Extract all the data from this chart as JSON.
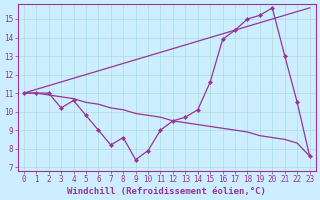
{
  "xlabel": "Windchill (Refroidissement éolien,°C)",
  "background_color": "#cceeff",
  "line_color": "#993399",
  "xlim": [
    -0.5,
    23.5
  ],
  "ylim": [
    6.8,
    15.8
  ],
  "yticks": [
    7,
    8,
    9,
    10,
    11,
    12,
    13,
    14,
    15
  ],
  "xticks": [
    0,
    1,
    2,
    3,
    4,
    5,
    6,
    7,
    8,
    9,
    10,
    11,
    12,
    13,
    14,
    15,
    16,
    17,
    18,
    19,
    20,
    21,
    22,
    23
  ],
  "series1_x": [
    0,
    1,
    2,
    3,
    4,
    5,
    6,
    7,
    8,
    9,
    10,
    11,
    12,
    13,
    14,
    15,
    16,
    17,
    18,
    19,
    20,
    21,
    22,
    23
  ],
  "series1_y": [
    11.0,
    11.0,
    11.0,
    10.2,
    10.6,
    9.8,
    9.0,
    8.2,
    8.6,
    7.4,
    7.9,
    9.0,
    9.5,
    9.7,
    10.1,
    11.6,
    13.9,
    14.4,
    15.0,
    15.2,
    15.6,
    13.0,
    10.5,
    7.6
  ],
  "series2_x": [
    0,
    23
  ],
  "series2_y": [
    11.0,
    15.6
  ],
  "series3_x": [
    0,
    1,
    2,
    3,
    4,
    5,
    6,
    7,
    8,
    9,
    10,
    11,
    12,
    13,
    14,
    15,
    16,
    17,
    18,
    19,
    20,
    21,
    22,
    23
  ],
  "series3_y": [
    11.0,
    11.0,
    10.9,
    10.8,
    10.7,
    10.5,
    10.4,
    10.2,
    10.1,
    9.9,
    9.8,
    9.7,
    9.5,
    9.4,
    9.3,
    9.2,
    9.1,
    9.0,
    8.9,
    8.7,
    8.6,
    8.5,
    8.3,
    7.6
  ],
  "grid_color": "#aadddd",
  "tick_fontsize": 5.5,
  "label_fontsize": 6.5
}
